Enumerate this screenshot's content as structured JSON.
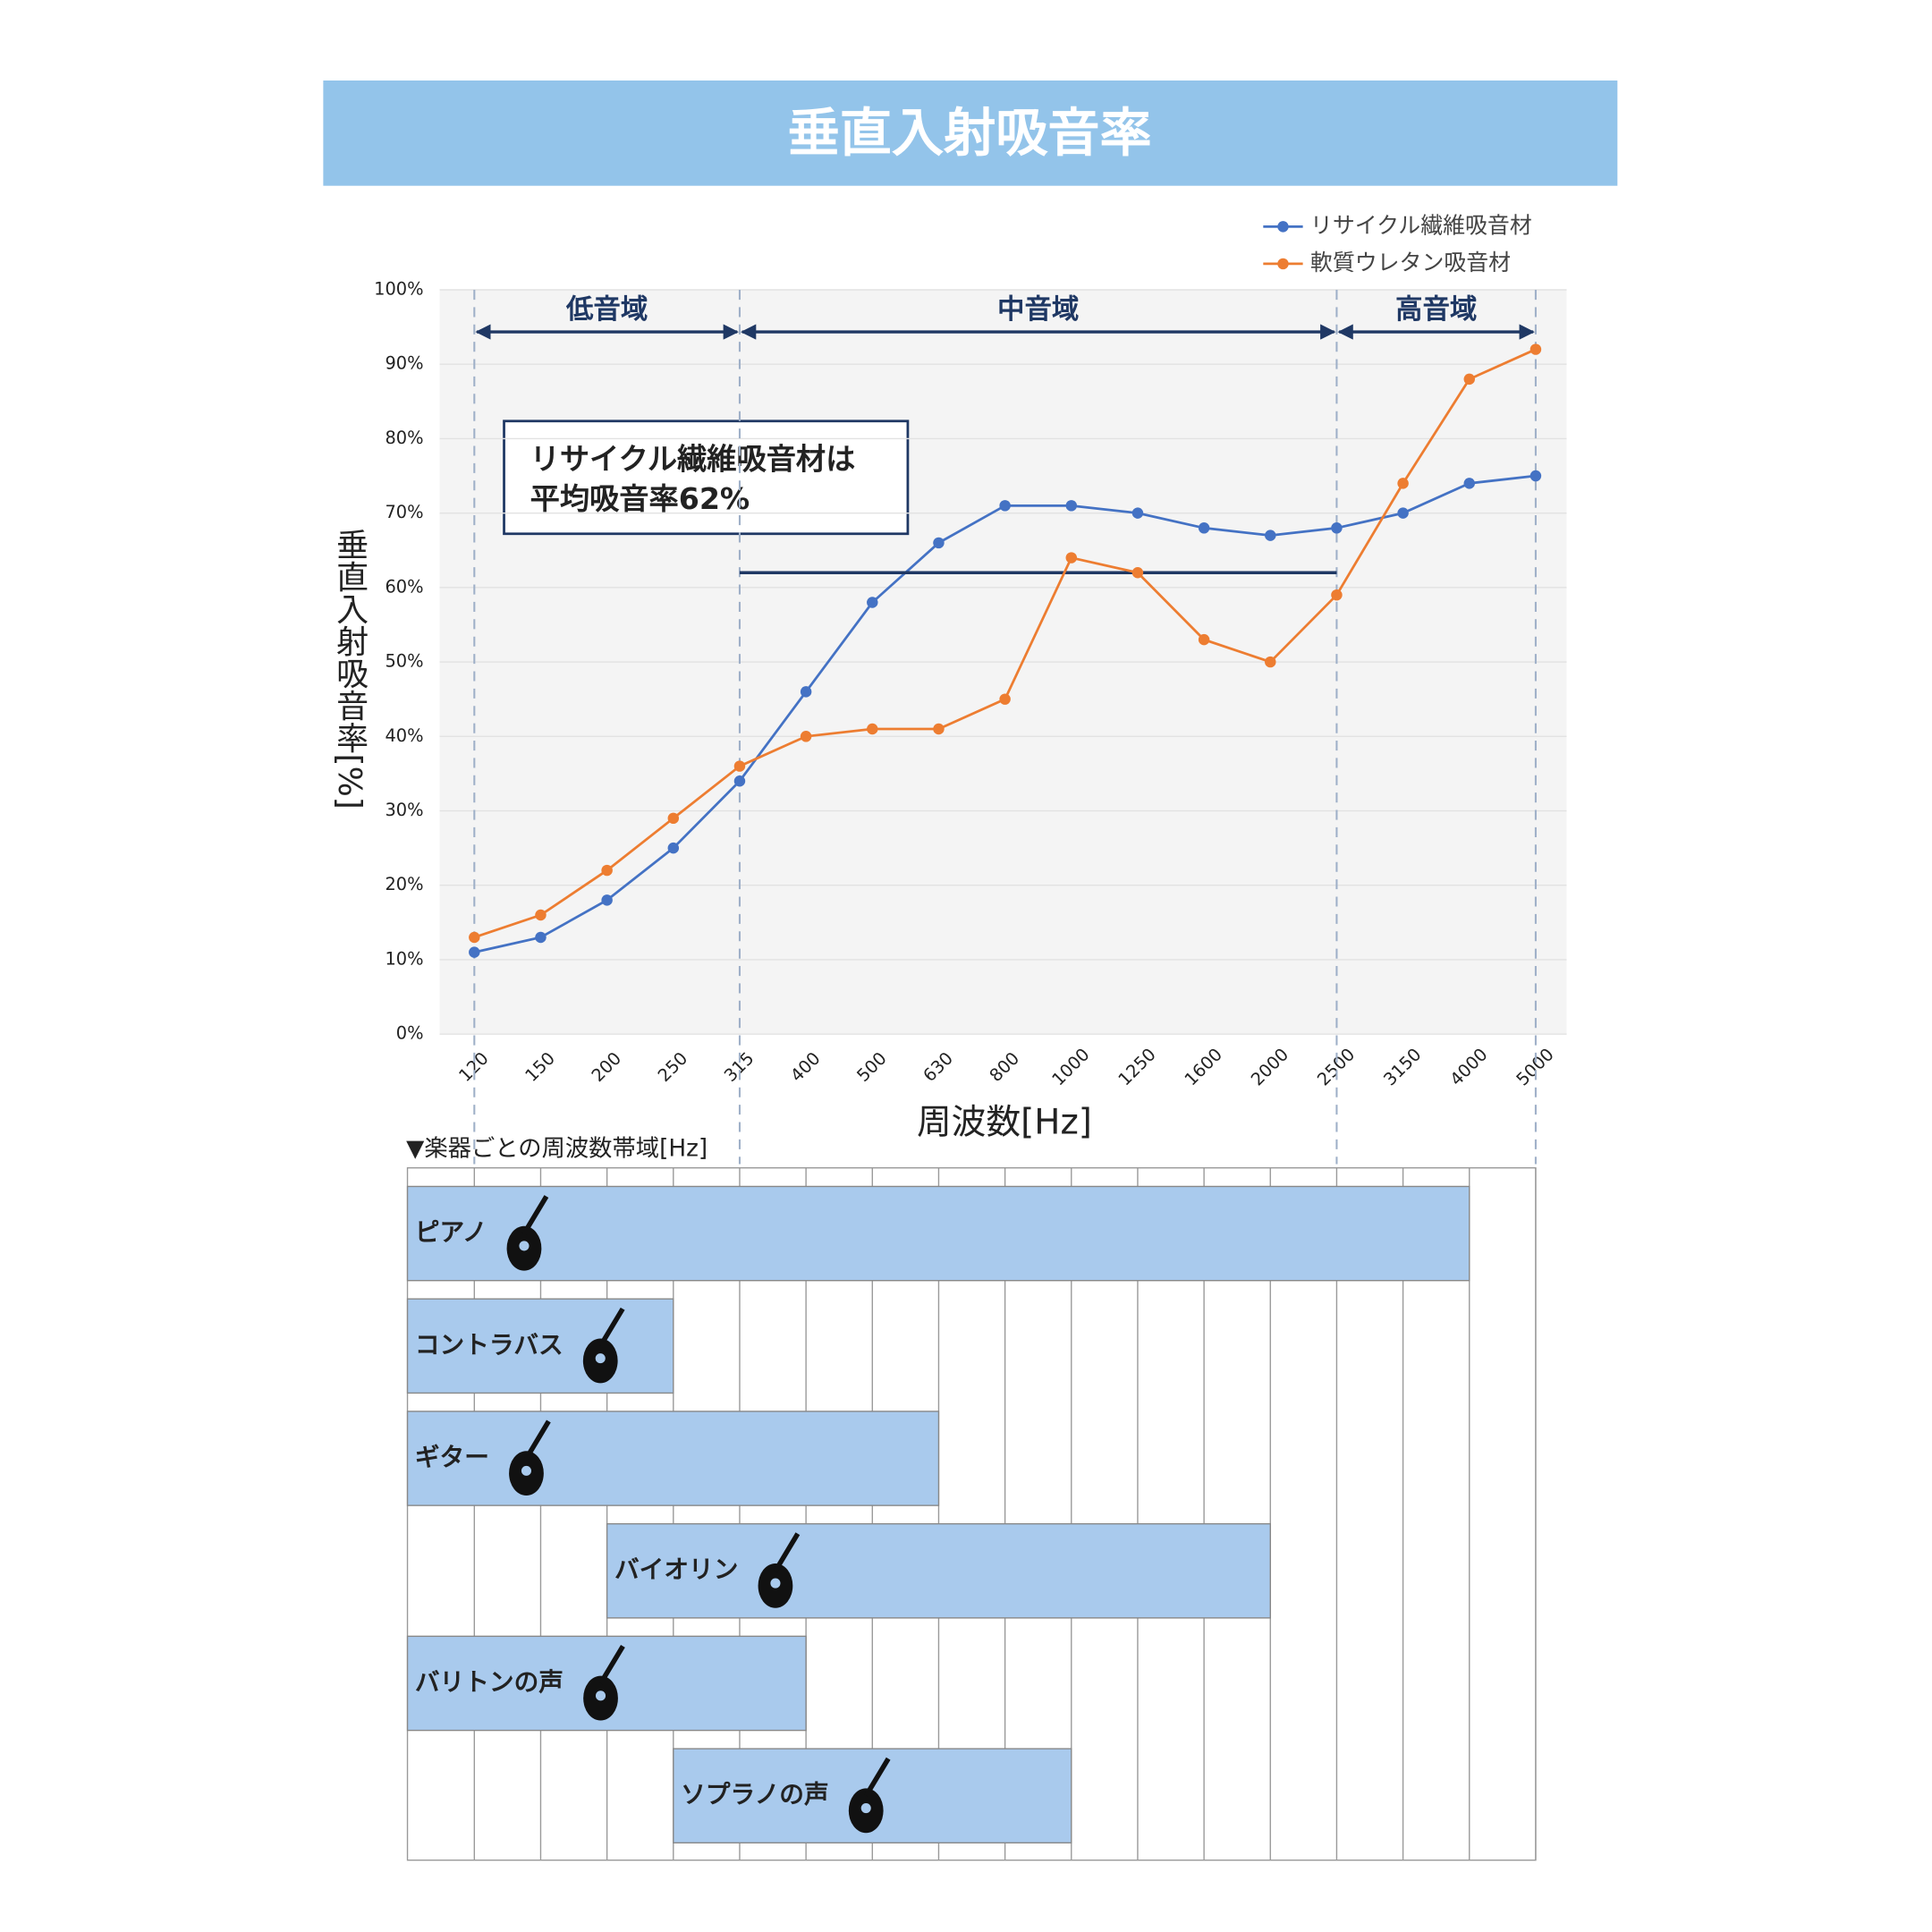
{
  "chart_data": {
    "type": "line",
    "title": "垂直入射吸音率",
    "x_label": "周波数[Hz]",
    "y_label": "垂直入射吸音率[%]",
    "categories": [
      "120",
      "150",
      "200",
      "250",
      "315",
      "400",
      "500",
      "630",
      "800",
      "1000",
      "1250",
      "1600",
      "2000",
      "2500",
      "3150",
      "4000",
      "5000"
    ],
    "series": [
      {
        "name": "リサイクル繊維吸音材",
        "color": "#4472c4",
        "values": [
          11,
          13,
          18,
          25,
          34,
          46,
          58,
          66,
          71,
          71,
          70,
          68,
          67,
          68,
          70,
          74,
          75
        ],
        "mean": 62,
        "mean_range": [
          "315",
          "2500"
        ]
      },
      {
        "name": "軟質ウレタン吸音材",
        "color": "#ed7d31",
        "values": [
          13,
          16,
          22,
          29,
          36,
          40,
          41,
          41,
          45,
          64,
          62,
          53,
          50,
          59,
          74,
          88,
          92
        ]
      }
    ],
    "ylim": [
      0,
      100
    ],
    "yticks": [
      {
        "value": 0,
        "label": "0%"
      },
      {
        "value": 10,
        "label": "10%"
      },
      {
        "value": 20,
        "label": "20%"
      },
      {
        "value": 30,
        "label": "30%"
      },
      {
        "value": 40,
        "label": "40%"
      },
      {
        "value": 50,
        "label": "50%"
      },
      {
        "value": 60,
        "label": "60%"
      },
      {
        "value": 70,
        "label": "70%"
      },
      {
        "value": 80,
        "label": "80%"
      },
      {
        "value": 90,
        "label": "90%"
      },
      {
        "value": 100,
        "label": "100%"
      }
    ],
    "grid": true,
    "legend": "top-right",
    "regions": [
      {
        "label": "低音域",
        "from": "120",
        "to": "315"
      },
      {
        "label": "中音域",
        "from": "315",
        "to": "2500"
      },
      {
        "label": "高音域",
        "from": "2500",
        "to": "5000"
      }
    ],
    "annotation": [
      "リサイクル繊維吸音材は",
      "平均吸音率62%"
    ]
  },
  "instrument_ranges": {
    "title": "▼楽器ごとの周波数帯域[Hz]",
    "rows": [
      {
        "name": "ピアノ",
        "from": null,
        "to": "4000"
      },
      {
        "name": "コントラバス",
        "from": null,
        "to": "250"
      },
      {
        "name": "ギター",
        "from": null,
        "to": "630"
      },
      {
        "name": "バイオリン",
        "from": "200",
        "to": "2000"
      },
      {
        "name": "バリトンの声",
        "from": null,
        "to": "400"
      },
      {
        "name": "ソプラノの声",
        "from": "250",
        "to": "1000"
      }
    ]
  }
}
